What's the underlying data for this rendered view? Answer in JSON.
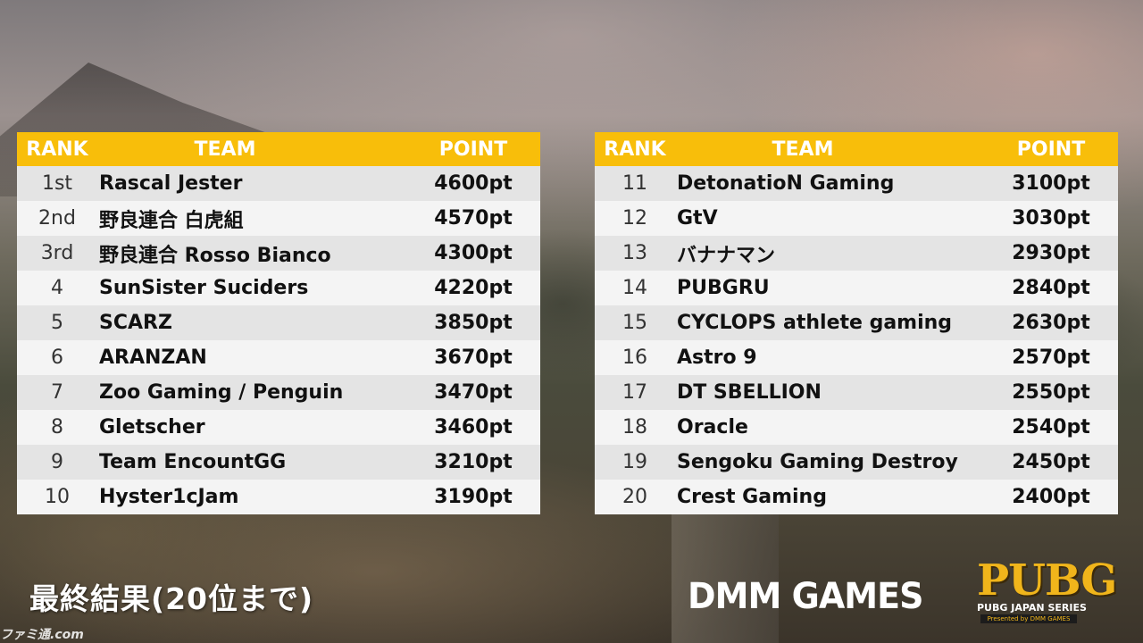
{
  "headers": {
    "rank": "RANK",
    "team": "TEAM",
    "point": "POINT"
  },
  "left_table": [
    {
      "rank": "1st",
      "team": "Rascal Jester",
      "point": "4600pt"
    },
    {
      "rank": "2nd",
      "team": "野良連合 白虎組",
      "point": "4570pt"
    },
    {
      "rank": "3rd",
      "team": "野良連合 Rosso Bianco",
      "point": "4300pt"
    },
    {
      "rank": "4",
      "team": "SunSister Suciders",
      "point": "4220pt"
    },
    {
      "rank": "5",
      "team": "SCARZ",
      "point": "3850pt"
    },
    {
      "rank": "6",
      "team": "ARANZAN",
      "point": "3670pt"
    },
    {
      "rank": "7",
      "team": "Zoo Gaming / Penguin",
      "point": "3470pt"
    },
    {
      "rank": "8",
      "team": "Gletscher",
      "point": "3460pt"
    },
    {
      "rank": "9",
      "team": "Team EncountGG",
      "point": "3210pt"
    },
    {
      "rank": "10",
      "team": "Hyster1cJam",
      "point": "3190pt"
    }
  ],
  "right_table": [
    {
      "rank": "11",
      "team": "DetonatioN Gaming",
      "point": "3100pt"
    },
    {
      "rank": "12",
      "team": "GtV",
      "point": "3030pt"
    },
    {
      "rank": "13",
      "team": "バナナマン",
      "point": "2930pt"
    },
    {
      "rank": "14",
      "team": "PUBGRU",
      "point": "2840pt"
    },
    {
      "rank": "15",
      "team": "CYCLOPS athlete gaming",
      "point": "2630pt"
    },
    {
      "rank": "16",
      "team": "Astro 9",
      "point": "2570pt"
    },
    {
      "rank": "17",
      "team": "DT SBELLION",
      "point": "2550pt"
    },
    {
      "rank": "18",
      "team": "Oracle",
      "point": "2540pt"
    },
    {
      "rank": "19",
      "team": "Sengoku Gaming Destroy",
      "point": "2450pt"
    },
    {
      "rank": "20",
      "team": "Crest Gaming",
      "point": "2400pt"
    }
  ],
  "caption": "最終結果(20位まで)",
  "dmm_logo": "DMM GAMES",
  "pubg_logo": {
    "word": "PUBG",
    "series": "PUBG JAPAN SERIES",
    "presented": "Presented by DMM GAMES"
  },
  "watermark": "ファミ通.com",
  "colors": {
    "header": "#f8be0a",
    "row_shade": "#e4e4e4",
    "row_light": "#f4f4f4",
    "pubg_gold": "#f0b51b"
  }
}
